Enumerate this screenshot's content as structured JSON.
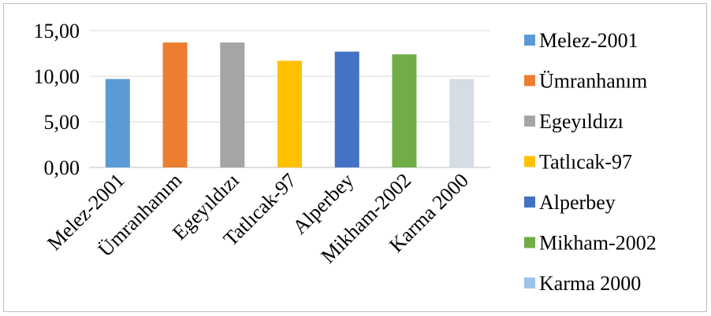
{
  "chart_data": {
    "type": "bar",
    "categories": [
      "Melez-2001",
      "Ümranhanım",
      "Egeyıldızı",
      "Tatlıcak-97",
      "Alperbey",
      "Mikham-2002",
      "Karma 2000"
    ],
    "values": [
      9.7,
      13.7,
      13.7,
      11.7,
      12.7,
      12.4,
      9.7
    ],
    "colors": [
      "#5b9bd5",
      "#ed7d31",
      "#a5a5a5",
      "#ffc000",
      "#4472c4",
      "#70ad47",
      "#d6dce5"
    ],
    "legend_colors": [
      "#5b9bd5",
      "#ed7d31",
      "#a5a5a5",
      "#ffc000",
      "#4472c4",
      "#70ad47",
      "#9dc3e6"
    ],
    "yticks": [
      "0,00",
      "5,00",
      "10,00",
      "15,00"
    ],
    "ylim": [
      0,
      15
    ],
    "grid": true,
    "legend_position": "right",
    "title": "",
    "xlabel": "",
    "ylabel": ""
  }
}
